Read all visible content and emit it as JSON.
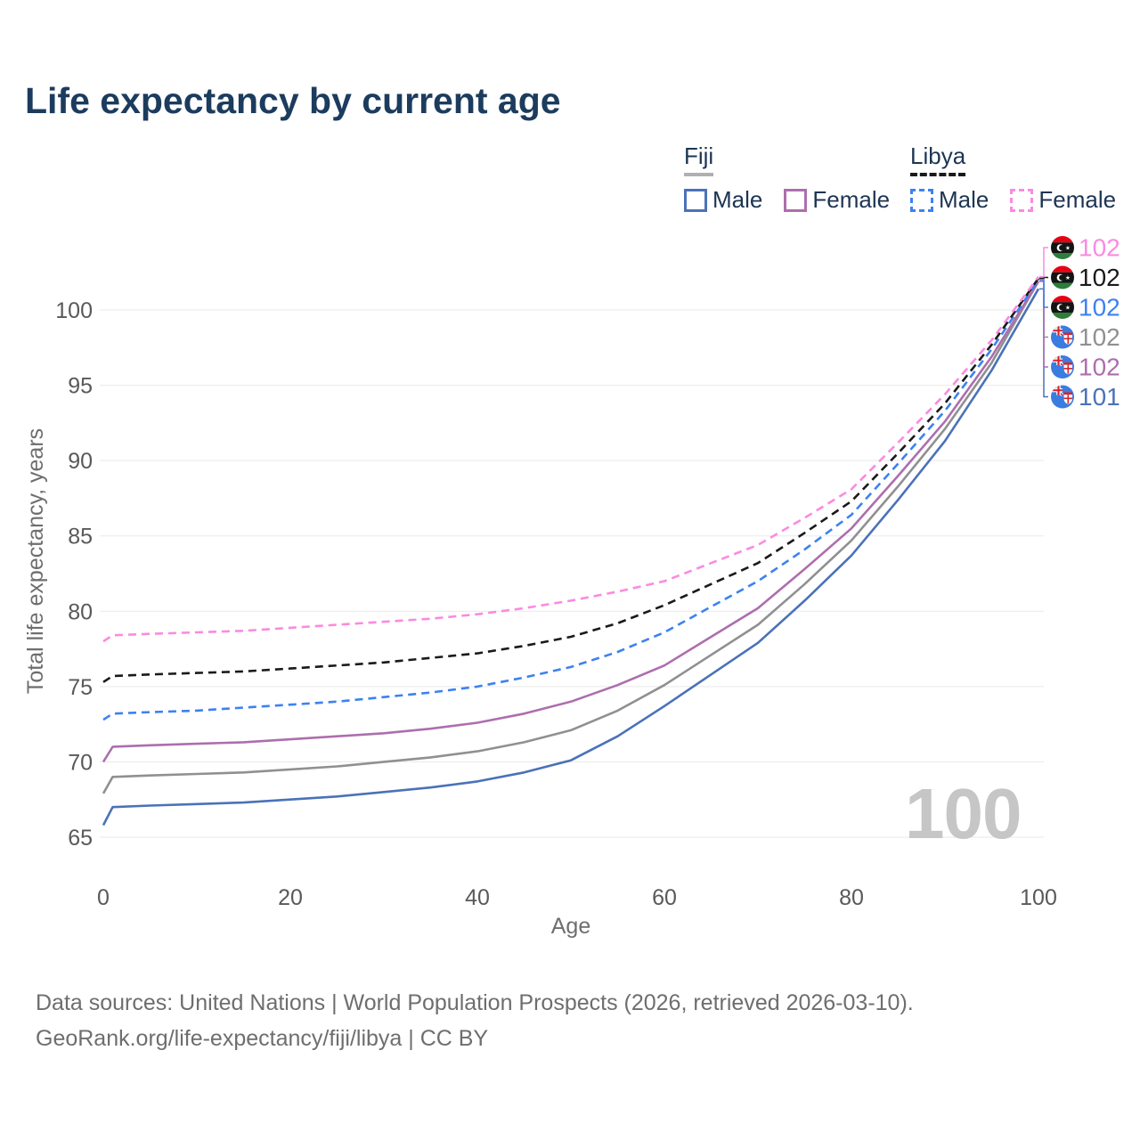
{
  "title": "Life expectancy by current age",
  "watermark": "100",
  "colors": {
    "title_text": "#1c3c5e",
    "legend_text": "#1d3553",
    "axis_text": "#595959",
    "axis_title_text": "#6e6e6e",
    "gridline": "#e9e9e9",
    "watermark": "#c6c6c6",
    "footer_text": "#6e6e6e",
    "fiji_underline": "#b0b0b0",
    "libya_underline": "#1a1a1a"
  },
  "legend": {
    "groups": [
      {
        "label": "Fiji",
        "line_style": "solid",
        "underline_color": "#b0b0b0",
        "items": [
          {
            "label": "Male",
            "color": "#4a72b8",
            "dashed": false
          },
          {
            "label": "Female",
            "color": "#ad6eae",
            "dashed": false
          }
        ]
      },
      {
        "label": "Libya",
        "line_style": "dashed",
        "underline_color": "#1a1a1a",
        "items": [
          {
            "label": "Male",
            "color": "#3c82f0",
            "dashed": true
          },
          {
            "label": "Female",
            "color": "#fb8ae1",
            "dashed": true
          }
        ]
      }
    ]
  },
  "chart_data": {
    "type": "line",
    "title": "Life expectancy by current age",
    "xlabel": "Age",
    "ylabel": "Total life expectancy, years",
    "xlim": [
      0,
      100
    ],
    "ylim": [
      65,
      103.5
    ],
    "x_ticks": [
      0,
      20,
      40,
      60,
      80,
      100
    ],
    "y_ticks": [
      65,
      70,
      75,
      80,
      85,
      90,
      95,
      100
    ],
    "grid": "horizontal",
    "legend_position": "top-right",
    "ages": [
      0,
      1,
      5,
      10,
      15,
      20,
      25,
      30,
      35,
      40,
      45,
      50,
      55,
      60,
      65,
      70,
      75,
      80,
      85,
      90,
      95,
      100
    ],
    "series": [
      {
        "name": "Fiji Male",
        "country": "fiji",
        "sex": "Male",
        "color": "#4a72b8",
        "dashed": false,
        "end_label": "101",
        "label_row": 5,
        "values": [
          65.8,
          67.0,
          67.1,
          67.2,
          67.3,
          67.5,
          67.7,
          68.0,
          68.3,
          68.7,
          69.3,
          70.1,
          71.7,
          73.7,
          75.8,
          77.9,
          80.7,
          83.7,
          87.4,
          91.3,
          96.0,
          101.4
        ]
      },
      {
        "name": "Fiji",
        "country": "fiji",
        "sex": "All",
        "color": "#909090",
        "dashed": false,
        "end_label": "102",
        "label_row": 3,
        "values": [
          67.9,
          69.0,
          69.1,
          69.2,
          69.3,
          69.5,
          69.7,
          70.0,
          70.3,
          70.7,
          71.3,
          72.1,
          73.4,
          75.1,
          77.1,
          79.1,
          81.8,
          84.7,
          88.3,
          92.1,
          96.5,
          101.9
        ]
      },
      {
        "name": "Fiji Female",
        "country": "fiji",
        "sex": "Female",
        "color": "#ad6eae",
        "dashed": false,
        "end_label": "102",
        "label_row": 4,
        "values": [
          70.0,
          71.0,
          71.1,
          71.2,
          71.3,
          71.5,
          71.7,
          71.9,
          72.2,
          72.6,
          73.2,
          74.0,
          75.1,
          76.4,
          78.3,
          80.2,
          82.8,
          85.5,
          89.0,
          92.6,
          96.9,
          101.9
        ]
      },
      {
        "name": "Libya Male",
        "country": "libya",
        "sex": "Male",
        "color": "#3c82f0",
        "dashed": true,
        "end_label": "102",
        "label_row": 2,
        "values": [
          72.8,
          73.2,
          73.3,
          73.4,
          73.6,
          73.8,
          74.0,
          74.3,
          74.6,
          75.0,
          75.6,
          76.3,
          77.3,
          78.6,
          80.3,
          82.0,
          84.1,
          86.4,
          89.8,
          93.3,
          97.4,
          102.0
        ]
      },
      {
        "name": "Libya",
        "country": "libya",
        "sex": "All",
        "color": "#1a1a1a",
        "dashed": true,
        "end_label": "102",
        "label_row": 1,
        "values": [
          75.3,
          75.7,
          75.8,
          75.9,
          76.0,
          76.2,
          76.4,
          76.6,
          76.9,
          77.2,
          77.7,
          78.3,
          79.2,
          80.4,
          81.8,
          83.2,
          85.2,
          87.3,
          90.5,
          93.8,
          97.7,
          102.1
        ]
      },
      {
        "name": "Libya Female",
        "country": "libya",
        "sex": "Female",
        "color": "#fb8ae1",
        "dashed": true,
        "end_label": "102",
        "label_row": 0,
        "values": [
          78.0,
          78.4,
          78.5,
          78.6,
          78.7,
          78.9,
          79.1,
          79.3,
          79.5,
          79.8,
          80.2,
          80.7,
          81.3,
          82.0,
          83.2,
          84.4,
          86.2,
          88.1,
          91.2,
          94.4,
          98.0,
          102.2
        ]
      }
    ],
    "end_value_labels": [
      "102",
      "102",
      "102",
      "102",
      "102",
      "101"
    ]
  },
  "footer": {
    "line1": "Data sources: United Nations | World Population Prospects (2026, retrieved 2026-03-10).",
    "line2": "GeoRank.org/life-expectancy/fiji/libya | CC BY"
  }
}
